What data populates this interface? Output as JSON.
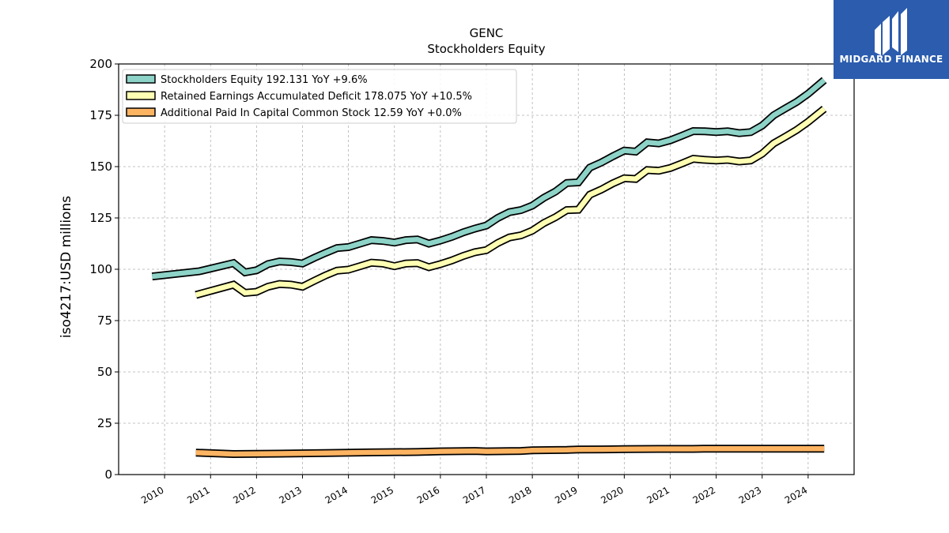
{
  "brand": {
    "name": "MIDGARD FINANCE",
    "color": "#2b5cae"
  },
  "chart_data": {
    "type": "line",
    "title": "GENC",
    "subtitle": "Stockholders  Equity",
    "ylabel": "iso4217:USD  millions",
    "xlabel": "",
    "ylim": [
      0,
      200
    ],
    "xlim": [
      2009.0,
      2025.0
    ],
    "yticks": [
      0,
      25,
      50,
      75,
      100,
      125,
      150,
      175,
      200
    ],
    "xticks": [
      2010,
      2011,
      2012,
      2013,
      2014,
      2015,
      2016,
      2017,
      2018,
      2019,
      2020,
      2021,
      2022,
      2023,
      2024
    ],
    "grid": true,
    "legend_position": "upper-left",
    "series": [
      {
        "name": "Stockholders Equity",
        "legend": "Stockholders Equity  192.131 YoY +9.6%",
        "color": "#8dd3c7",
        "points": [
          [
            2009.73,
            96.5
          ],
          [
            2010.75,
            99.0
          ],
          [
            2011.5,
            103.0
          ],
          [
            2011.75,
            98.5
          ],
          [
            2012.0,
            99.5
          ],
          [
            2012.25,
            102.5
          ],
          [
            2012.5,
            103.8
          ],
          [
            2012.75,
            103.5
          ],
          [
            2013.0,
            102.8
          ],
          [
            2013.25,
            105.5
          ],
          [
            2013.5,
            108.0
          ],
          [
            2013.75,
            110.3
          ],
          [
            2014.0,
            110.8
          ],
          [
            2014.25,
            112.5
          ],
          [
            2014.5,
            114.2
          ],
          [
            2014.75,
            113.8
          ],
          [
            2015.0,
            113.0
          ],
          [
            2015.25,
            114.2
          ],
          [
            2015.5,
            114.5
          ],
          [
            2015.75,
            112.5
          ],
          [
            2016.0,
            114.0
          ],
          [
            2016.25,
            115.8
          ],
          [
            2016.5,
            118.0
          ],
          [
            2016.75,
            119.8
          ],
          [
            2017.0,
            121.3
          ],
          [
            2017.25,
            125.0
          ],
          [
            2017.5,
            127.8
          ],
          [
            2017.75,
            128.8
          ],
          [
            2018.0,
            131.0
          ],
          [
            2018.25,
            134.8
          ],
          [
            2018.5,
            137.8
          ],
          [
            2018.75,
            142.0
          ],
          [
            2019.0,
            142.3
          ],
          [
            2019.25,
            149.5
          ],
          [
            2019.5,
            152.0
          ],
          [
            2019.75,
            155.0
          ],
          [
            2020.0,
            157.8
          ],
          [
            2020.25,
            157.3
          ],
          [
            2020.5,
            161.8
          ],
          [
            2020.75,
            161.3
          ],
          [
            2021.0,
            162.8
          ],
          [
            2021.25,
            165.0
          ],
          [
            2021.5,
            167.3
          ],
          [
            2021.75,
            167.2
          ],
          [
            2022.0,
            166.8
          ],
          [
            2022.25,
            167.2
          ],
          [
            2022.5,
            166.3
          ],
          [
            2022.75,
            166.8
          ],
          [
            2023.0,
            170.0
          ],
          [
            2023.25,
            175.0
          ],
          [
            2023.5,
            178.3
          ],
          [
            2023.75,
            181.5
          ],
          [
            2024.0,
            185.5
          ],
          [
            2024.35,
            192.1
          ]
        ]
      },
      {
        "name": "Retained Earnings Accumulated Deficit",
        "legend": "Retained Earnings Accumulated Deficit  178.075 YoY +10.5%",
        "color": "#ffffb3",
        "points": [
          [
            2010.68,
            87.5
          ],
          [
            2011.5,
            92.5
          ],
          [
            2011.75,
            88.5
          ],
          [
            2012.0,
            89.0
          ],
          [
            2012.25,
            91.5
          ],
          [
            2012.5,
            92.8
          ],
          [
            2012.75,
            92.5
          ],
          [
            2013.0,
            91.5
          ],
          [
            2013.25,
            94.3
          ],
          [
            2013.5,
            97.0
          ],
          [
            2013.75,
            99.3
          ],
          [
            2014.0,
            99.8
          ],
          [
            2014.25,
            101.5
          ],
          [
            2014.5,
            103.2
          ],
          [
            2014.75,
            102.8
          ],
          [
            2015.0,
            101.5
          ],
          [
            2015.25,
            102.8
          ],
          [
            2015.5,
            103.0
          ],
          [
            2015.75,
            101.0
          ],
          [
            2016.0,
            102.5
          ],
          [
            2016.25,
            104.3
          ],
          [
            2016.5,
            106.5
          ],
          [
            2016.75,
            108.3
          ],
          [
            2017.0,
            109.3
          ],
          [
            2017.25,
            112.8
          ],
          [
            2017.5,
            115.5
          ],
          [
            2017.75,
            116.5
          ],
          [
            2018.0,
            118.8
          ],
          [
            2018.25,
            122.5
          ],
          [
            2018.5,
            125.3
          ],
          [
            2018.75,
            128.8
          ],
          [
            2019.0,
            129.0
          ],
          [
            2019.25,
            136.3
          ],
          [
            2019.5,
            138.8
          ],
          [
            2019.75,
            141.8
          ],
          [
            2020.0,
            144.3
          ],
          [
            2020.25,
            144.0
          ],
          [
            2020.5,
            148.3
          ],
          [
            2020.75,
            148.0
          ],
          [
            2021.0,
            149.3
          ],
          [
            2021.25,
            151.5
          ],
          [
            2021.5,
            153.8
          ],
          [
            2021.75,
            153.3
          ],
          [
            2022.0,
            153.0
          ],
          [
            2022.25,
            153.3
          ],
          [
            2022.5,
            152.5
          ],
          [
            2022.75,
            153.0
          ],
          [
            2023.0,
            156.3
          ],
          [
            2023.25,
            161.3
          ],
          [
            2023.5,
            164.5
          ],
          [
            2023.75,
            167.8
          ],
          [
            2024.0,
            171.8
          ],
          [
            2024.35,
            178.1
          ]
        ]
      },
      {
        "name": "Additional Paid In Capital Common Stock",
        "legend": "Additional Paid In Capital Common Stock  12.59 YoY +0.0%",
        "color": "#fdb462",
        "points": [
          [
            2010.68,
            10.7
          ],
          [
            2011.5,
            10.0
          ],
          [
            2012.5,
            10.2
          ],
          [
            2013.5,
            10.5
          ],
          [
            2014.5,
            10.8
          ],
          [
            2015.5,
            11.0
          ],
          [
            2016.0,
            11.3
          ],
          [
            2016.75,
            11.5
          ],
          [
            2017.0,
            11.3
          ],
          [
            2017.75,
            11.5
          ],
          [
            2018.0,
            11.8
          ],
          [
            2018.75,
            12.0
          ],
          [
            2019.0,
            12.2
          ],
          [
            2019.75,
            12.3
          ],
          [
            2020.0,
            12.4
          ],
          [
            2020.75,
            12.5
          ],
          [
            2021.5,
            12.5
          ],
          [
            2021.75,
            12.6
          ],
          [
            2022.5,
            12.6
          ],
          [
            2023.5,
            12.6
          ],
          [
            2024.35,
            12.59
          ]
        ]
      }
    ]
  }
}
